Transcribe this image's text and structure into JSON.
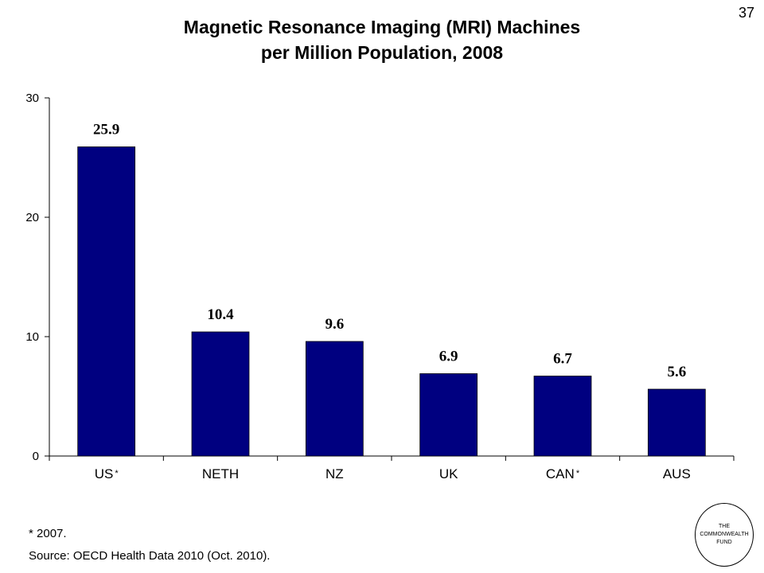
{
  "slide_number": "37",
  "header": {
    "title_line_1": "Magnetic Resonance Imaging (MRI) Machines",
    "title_line_2": "per Million Population, 2008"
  },
  "chart_data": {
    "type": "bar",
    "title": "Magnetic Resonance Imaging (MRI) Machines per Million Population, 2008",
    "categories": [
      "US",
      "NETH",
      "NZ",
      "UK",
      "CAN",
      "AUS"
    ],
    "category_markers": [
      "*",
      "",
      "",
      "",
      "*",
      ""
    ],
    "values": [
      25.9,
      10.4,
      9.6,
      6.9,
      6.7,
      5.6
    ],
    "data_labels": [
      "25.9",
      "10.4",
      "9.6",
      "6.9",
      "6.7",
      "5.6"
    ],
    "xlabel": "",
    "ylabel": "",
    "ylim": [
      0,
      30
    ],
    "yticks": [
      0,
      10,
      20,
      30
    ],
    "grid": false,
    "legend": "none",
    "bar_color": "#000080"
  },
  "footer": {
    "note": "* 2007.",
    "source": "Source: OECD Health Data 2010 (Oct. 2010).",
    "logo_lines": [
      "THE",
      "COMMONWEALTH",
      "FUND"
    ]
  }
}
